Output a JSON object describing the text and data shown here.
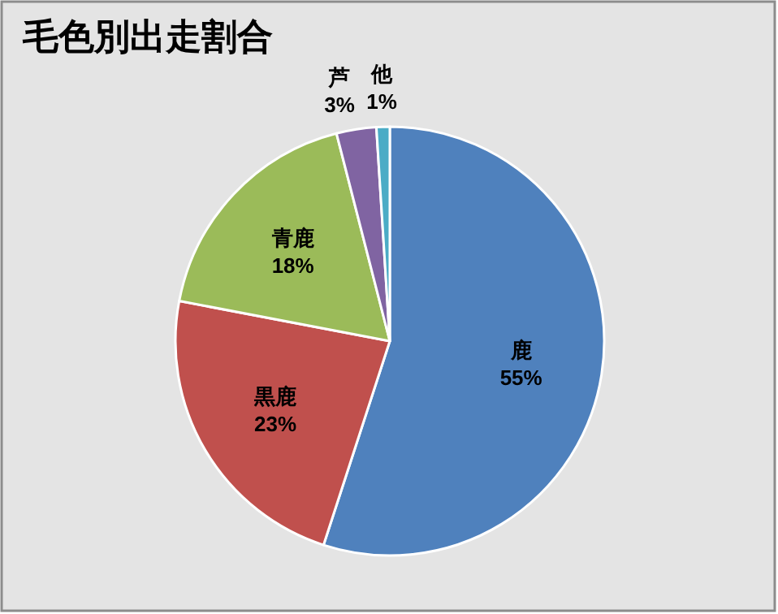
{
  "chart_data": {
    "type": "pie",
    "title": "毛色別出走割合",
    "categories": [
      "鹿",
      "黒鹿",
      "青鹿",
      "芦",
      "他"
    ],
    "values": [
      55,
      23,
      18,
      3,
      1
    ],
    "colors": [
      "#4f81bd",
      "#c0504d",
      "#9bbb59",
      "#8064a2",
      "#4bacc6"
    ],
    "value_labels": [
      "55%",
      "23%",
      "18%",
      "3%",
      "1%"
    ]
  }
}
